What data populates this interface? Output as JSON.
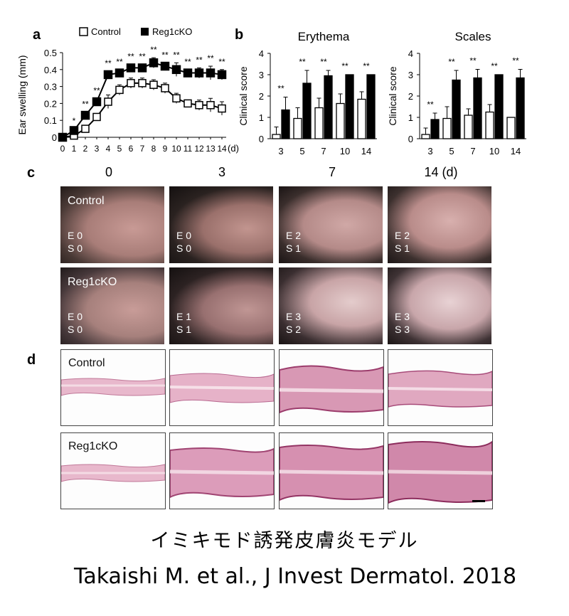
{
  "panels": {
    "a": "a",
    "b": "b",
    "c": "c",
    "d": "d"
  },
  "legend": {
    "control": "Control",
    "ko": "Reg1cKO"
  },
  "chart_data": [
    {
      "type": "line",
      "ylabel": "Ear swelling (mm)",
      "x_unit": "(d)",
      "x": [
        0,
        1,
        2,
        3,
        4,
        5,
        6,
        7,
        8,
        9,
        10,
        11,
        12,
        13,
        14
      ],
      "ylim": [
        0,
        0.5
      ],
      "yticks": [
        "0",
        "0.1",
        "0.2",
        "0.3",
        "0.4",
        "0.5"
      ],
      "series": [
        {
          "name": "Control",
          "values": [
            0,
            0.01,
            0.05,
            0.12,
            0.21,
            0.28,
            0.32,
            0.32,
            0.31,
            0.29,
            0.23,
            0.2,
            0.19,
            0.19,
            0.17
          ],
          "errors": [
            0.01,
            0.01,
            0.02,
            0.02,
            0.04,
            0.03,
            0.03,
            0.03,
            0.03,
            0.03,
            0.03,
            0.02,
            0.03,
            0.04,
            0.04
          ]
        },
        {
          "name": "Reg1cKO",
          "values": [
            0,
            0.04,
            0.13,
            0.21,
            0.37,
            0.38,
            0.41,
            0.41,
            0.44,
            0.42,
            0.4,
            0.38,
            0.38,
            0.38,
            0.37
          ],
          "errors": [
            0.01,
            0.01,
            0.02,
            0.02,
            0.02,
            0.02,
            0.02,
            0.02,
            0.03,
            0.02,
            0.04,
            0.02,
            0.03,
            0.04,
            0.03
          ]
        }
      ],
      "significance": [
        "",
        "*",
        "**",
        "**",
        "**",
        "**",
        "**",
        "**",
        "**",
        "**",
        "**",
        "**",
        "**",
        "**",
        "**"
      ]
    },
    {
      "type": "bar",
      "title": "Erythema",
      "ylabel": "Clinical score",
      "categories": [
        "3",
        "5",
        "7",
        "10",
        "14"
      ],
      "ylim": [
        0,
        4
      ],
      "yticks": [
        "0",
        "1",
        "2",
        "3",
        "4"
      ],
      "series": [
        {
          "name": "Control",
          "values": [
            0.2,
            0.95,
            1.45,
            1.65,
            1.85
          ],
          "errors": [
            0.35,
            0.5,
            0.45,
            0.45,
            0.35
          ]
        },
        {
          "name": "Reg1cKO",
          "values": [
            1.35,
            2.6,
            2.95,
            3.0,
            3.0
          ],
          "errors": [
            0.6,
            0.6,
            0.25,
            0.0,
            0.0
          ]
        }
      ],
      "significance": [
        "**",
        "**",
        "**",
        "**",
        "**"
      ]
    },
    {
      "type": "bar",
      "title": "Scales",
      "ylabel": "Clinical score",
      "categories": [
        "3",
        "5",
        "7",
        "10",
        "14"
      ],
      "ylim": [
        0,
        4
      ],
      "yticks": [
        "0",
        "1",
        "2",
        "3",
        "4"
      ],
      "series": [
        {
          "name": "Control",
          "values": [
            0.2,
            0.95,
            1.1,
            1.25,
            1.0
          ],
          "errors": [
            0.3,
            0.55,
            0.3,
            0.35,
            0.0
          ]
        },
        {
          "name": "Reg1cKO",
          "values": [
            0.9,
            2.75,
            2.85,
            3.0,
            2.85
          ],
          "errors": [
            0.3,
            0.45,
            0.4,
            0.0,
            0.4
          ]
        }
      ],
      "significance": [
        "**",
        "**",
        "**",
        "**",
        "**"
      ]
    }
  ],
  "photo_grid": {
    "headers": [
      "0",
      "3",
      "7",
      "14 (d)"
    ],
    "rows": [
      {
        "label": "Control",
        "scores": [
          [
            "E 0",
            "S 0"
          ],
          [
            "E 0",
            "S 0"
          ],
          [
            "E 2",
            "S 1"
          ],
          [
            "E 2",
            "S 1"
          ]
        ]
      },
      {
        "label": "Reg1cKO",
        "scores": [
          [
            "E 0",
            "S 0"
          ],
          [
            "E 1",
            "S 1"
          ],
          [
            "E 3",
            "S 2"
          ],
          [
            "E 3",
            "S 3"
          ]
        ]
      }
    ]
  },
  "histology": {
    "row_labels": [
      "Control",
      "Reg1cKO"
    ]
  },
  "caption": {
    "japanese": "イミキモド誘発皮膚炎モデル",
    "citation": "Takaishi M. et al., J Invest Dermatol. 2018"
  }
}
